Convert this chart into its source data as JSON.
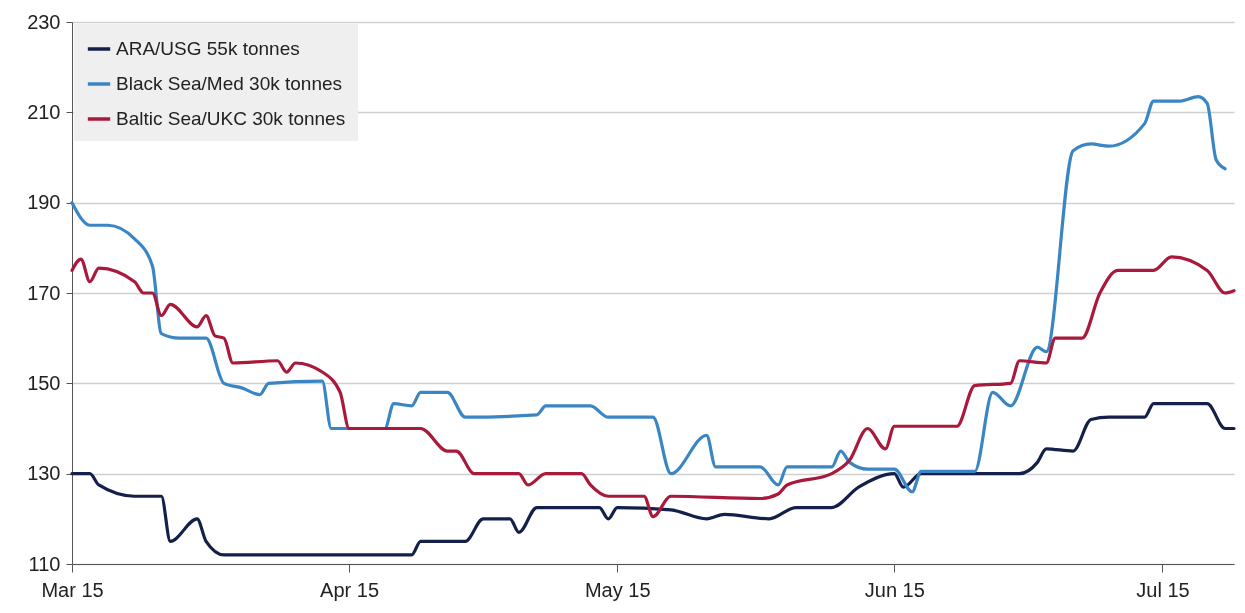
{
  "chart_data": {
    "type": "line",
    "xlim": [
      "--03-15",
      "--07-23"
    ],
    "xticks": [
      {
        "value": "--03-15",
        "label": "Mar 15"
      },
      {
        "value": "--04-15",
        "label": "Apr 15"
      },
      {
        "value": "--05-15",
        "label": "May 15"
      },
      {
        "value": "--06-15",
        "label": "Jun 15"
      },
      {
        "value": "--07-15",
        "label": "Jul 15"
      }
    ],
    "ylim": [
      110,
      230
    ],
    "yticks": [
      110,
      130,
      150,
      170,
      190,
      210,
      230
    ],
    "grid": "y",
    "legend": "top left",
    "line_style": "solid",
    "series": [
      {
        "name": "ARA/USG 55k tonnes",
        "color": "#14204a",
        "x": [
          "--03-15",
          "--03-17",
          "--03-18",
          "--03-22",
          "--03-25",
          "--03-26",
          "--03-29",
          "--03-30",
          "--04-01",
          "--04-22",
          "--04-23",
          "--04-28",
          "--04-30",
          "--05-03",
          "--05-04",
          "--05-06",
          "--05-13",
          "--05-14",
          "--05-15",
          "--05-21",
          "--05-25",
          "--05-27",
          "--06-01",
          "--06-04",
          "--06-08",
          "--06-11",
          "--06-15",
          "--06-16",
          "--06-18",
          "--06-29",
          "--07-01",
          "--07-02",
          "--07-05",
          "--07-07",
          "--07-09",
          "--07-13",
          "--07-14",
          "--07-20",
          "--07-22",
          "--07-23"
        ],
        "values": [
          130,
          130,
          127.5,
          125,
          125,
          115,
          120,
          115,
          112,
          112,
          115,
          115,
          120,
          120,
          117,
          122.5,
          122.5,
          120,
          122.5,
          122,
          120,
          121,
          120,
          122.5,
          122.5,
          127,
          130,
          127,
          130,
          130,
          132.5,
          135.5,
          135,
          142,
          142.5,
          142.5,
          145.5,
          145.5,
          140,
          140
        ]
      },
      {
        "name": "Black Sea/Med 30k tonnes",
        "color": "#3a86c4",
        "x": [
          "--03-15",
          "--03-17",
          "--03-19",
          "--03-22",
          "--03-24",
          "--03-25",
          "--03-27",
          "--03-30",
          "--04-01",
          "--04-03",
          "--04-05",
          "--04-06",
          "--04-12",
          "--04-13",
          "--04-19",
          "--04-20",
          "--04-22",
          "--04-23",
          "--04-26",
          "--04-28",
          "--05-06",
          "--05-07",
          "--05-12",
          "--05-14",
          "--05-19",
          "--05-21",
          "--05-25",
          "--05-26",
          "--05-31",
          "--06-02",
          "--06-03",
          "--06-08",
          "--06-09",
          "--06-10",
          "--06-12",
          "--06-15",
          "--06-17",
          "--06-18",
          "--06-24",
          "--06-26",
          "--06-28",
          "--07-01",
          "--07-02",
          "--07-05",
          "--07-07",
          "--07-09",
          "--07-13",
          "--07-14",
          "--07-17",
          "--07-19",
          "--07-20",
          "--07-21",
          "--07-22"
        ],
        "values": [
          190,
          185,
          185,
          182,
          176,
          161,
          160,
          160,
          150,
          149,
          147.5,
          150,
          150.5,
          140,
          140,
          145.5,
          145,
          148,
          148,
          142.5,
          143,
          145,
          145,
          142.5,
          142.5,
          130,
          138.5,
          131.5,
          131.5,
          127.5,
          131.5,
          131.5,
          135,
          132.5,
          131,
          131,
          126,
          130.5,
          130.5,
          148,
          145,
          158,
          157,
          201.5,
          203,
          202.5,
          207.5,
          212.5,
          212.5,
          213.5,
          212,
          199.5,
          197.5
        ]
      },
      {
        "name": "Baltic Sea/UKC 30k tonnes",
        "color": "#a8193b",
        "x": [
          "--03-15",
          "--03-16",
          "--03-17",
          "--03-18",
          "--03-22",
          "--03-23",
          "--03-24",
          "--03-25",
          "--03-26",
          "--03-29",
          "--03-30",
          "--03-31",
          "--04-01",
          "--04-02",
          "--04-07",
          "--04-08",
          "--04-09",
          "--04-12",
          "--04-14",
          "--04-15",
          "--04-23",
          "--04-26",
          "--04-27",
          "--04-29",
          "--05-04",
          "--05-05",
          "--05-07",
          "--05-11",
          "--05-12",
          "--05-14",
          "--05-18",
          "--05-19",
          "--05-21",
          "--05-31",
          "--06-02",
          "--06-03",
          "--06-08",
          "--06-10",
          "--06-12",
          "--06-14",
          "--06-15",
          "--06-22",
          "--06-24",
          "--06-28",
          "--06-29",
          "--07-02",
          "--07-03",
          "--07-06",
          "--07-08",
          "--07-10",
          "--07-14",
          "--07-16",
          "--07-20",
          "--07-22",
          "--07-23"
        ],
        "values": [
          175,
          177.5,
          172.5,
          175.5,
          172.5,
          170,
          170,
          165,
          167.5,
          162.5,
          165,
          160.5,
          160,
          154.5,
          155,
          152.5,
          154.5,
          152.5,
          148,
          140,
          140,
          135,
          135,
          130,
          130,
          127.5,
          130,
          130,
          127.5,
          125,
          125,
          120.5,
          125,
          124.5,
          125.5,
          127.5,
          130,
          133,
          140,
          135.5,
          140.5,
          140.5,
          149.5,
          150,
          155,
          154.5,
          160,
          160,
          170,
          175,
          175,
          178,
          175,
          170,
          170.5
        ]
      }
    ]
  }
}
